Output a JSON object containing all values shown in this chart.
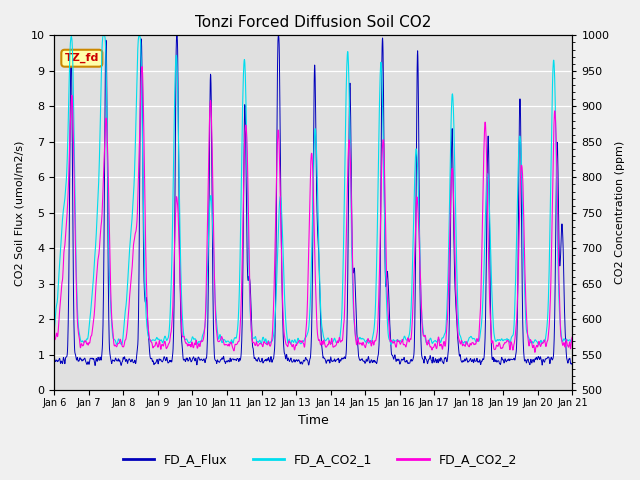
{
  "title": "Tonzi Forced Diffusion Soil CO2",
  "xlabel": "Time",
  "ylabel_left": "CO2 Soil Flux (umol/m2/s)",
  "ylabel_right": "CO2 Concentration (ppm)",
  "ylim_left": [
    0.0,
    10.0
  ],
  "ylim_right": [
    500,
    1000
  ],
  "background_color": "#f0f0f0",
  "plot_bg_color": "#e0e0e0",
  "flux_color": "#0000bb",
  "co2_1_color": "#00ddee",
  "co2_2_color": "#ff00dd",
  "legend_labels": [
    "FD_A_Flux",
    "FD_A_CO2_1",
    "FD_A_CO2_2"
  ],
  "tag_text": "TZ_fd",
  "tag_bg": "#ffffaa",
  "tag_border": "#cc8800",
  "tag_text_color": "#cc0000",
  "x_tick_labels": [
    "Jan 6",
    "Jan 7",
    "Jan 8",
    "Jan 9",
    "Jan 10",
    "Jan 11",
    "Jan 12",
    "Jan 13",
    "Jan 14",
    "Jan 15",
    "Jan 16",
    "Jan 17",
    "Jan 18",
    "Jan 19",
    "Jan 20",
    "Jan 21"
  ],
  "n_days": 15,
  "pts_per_day": 144,
  "figwidth": 6.4,
  "figheight": 4.8,
  "dpi": 100
}
